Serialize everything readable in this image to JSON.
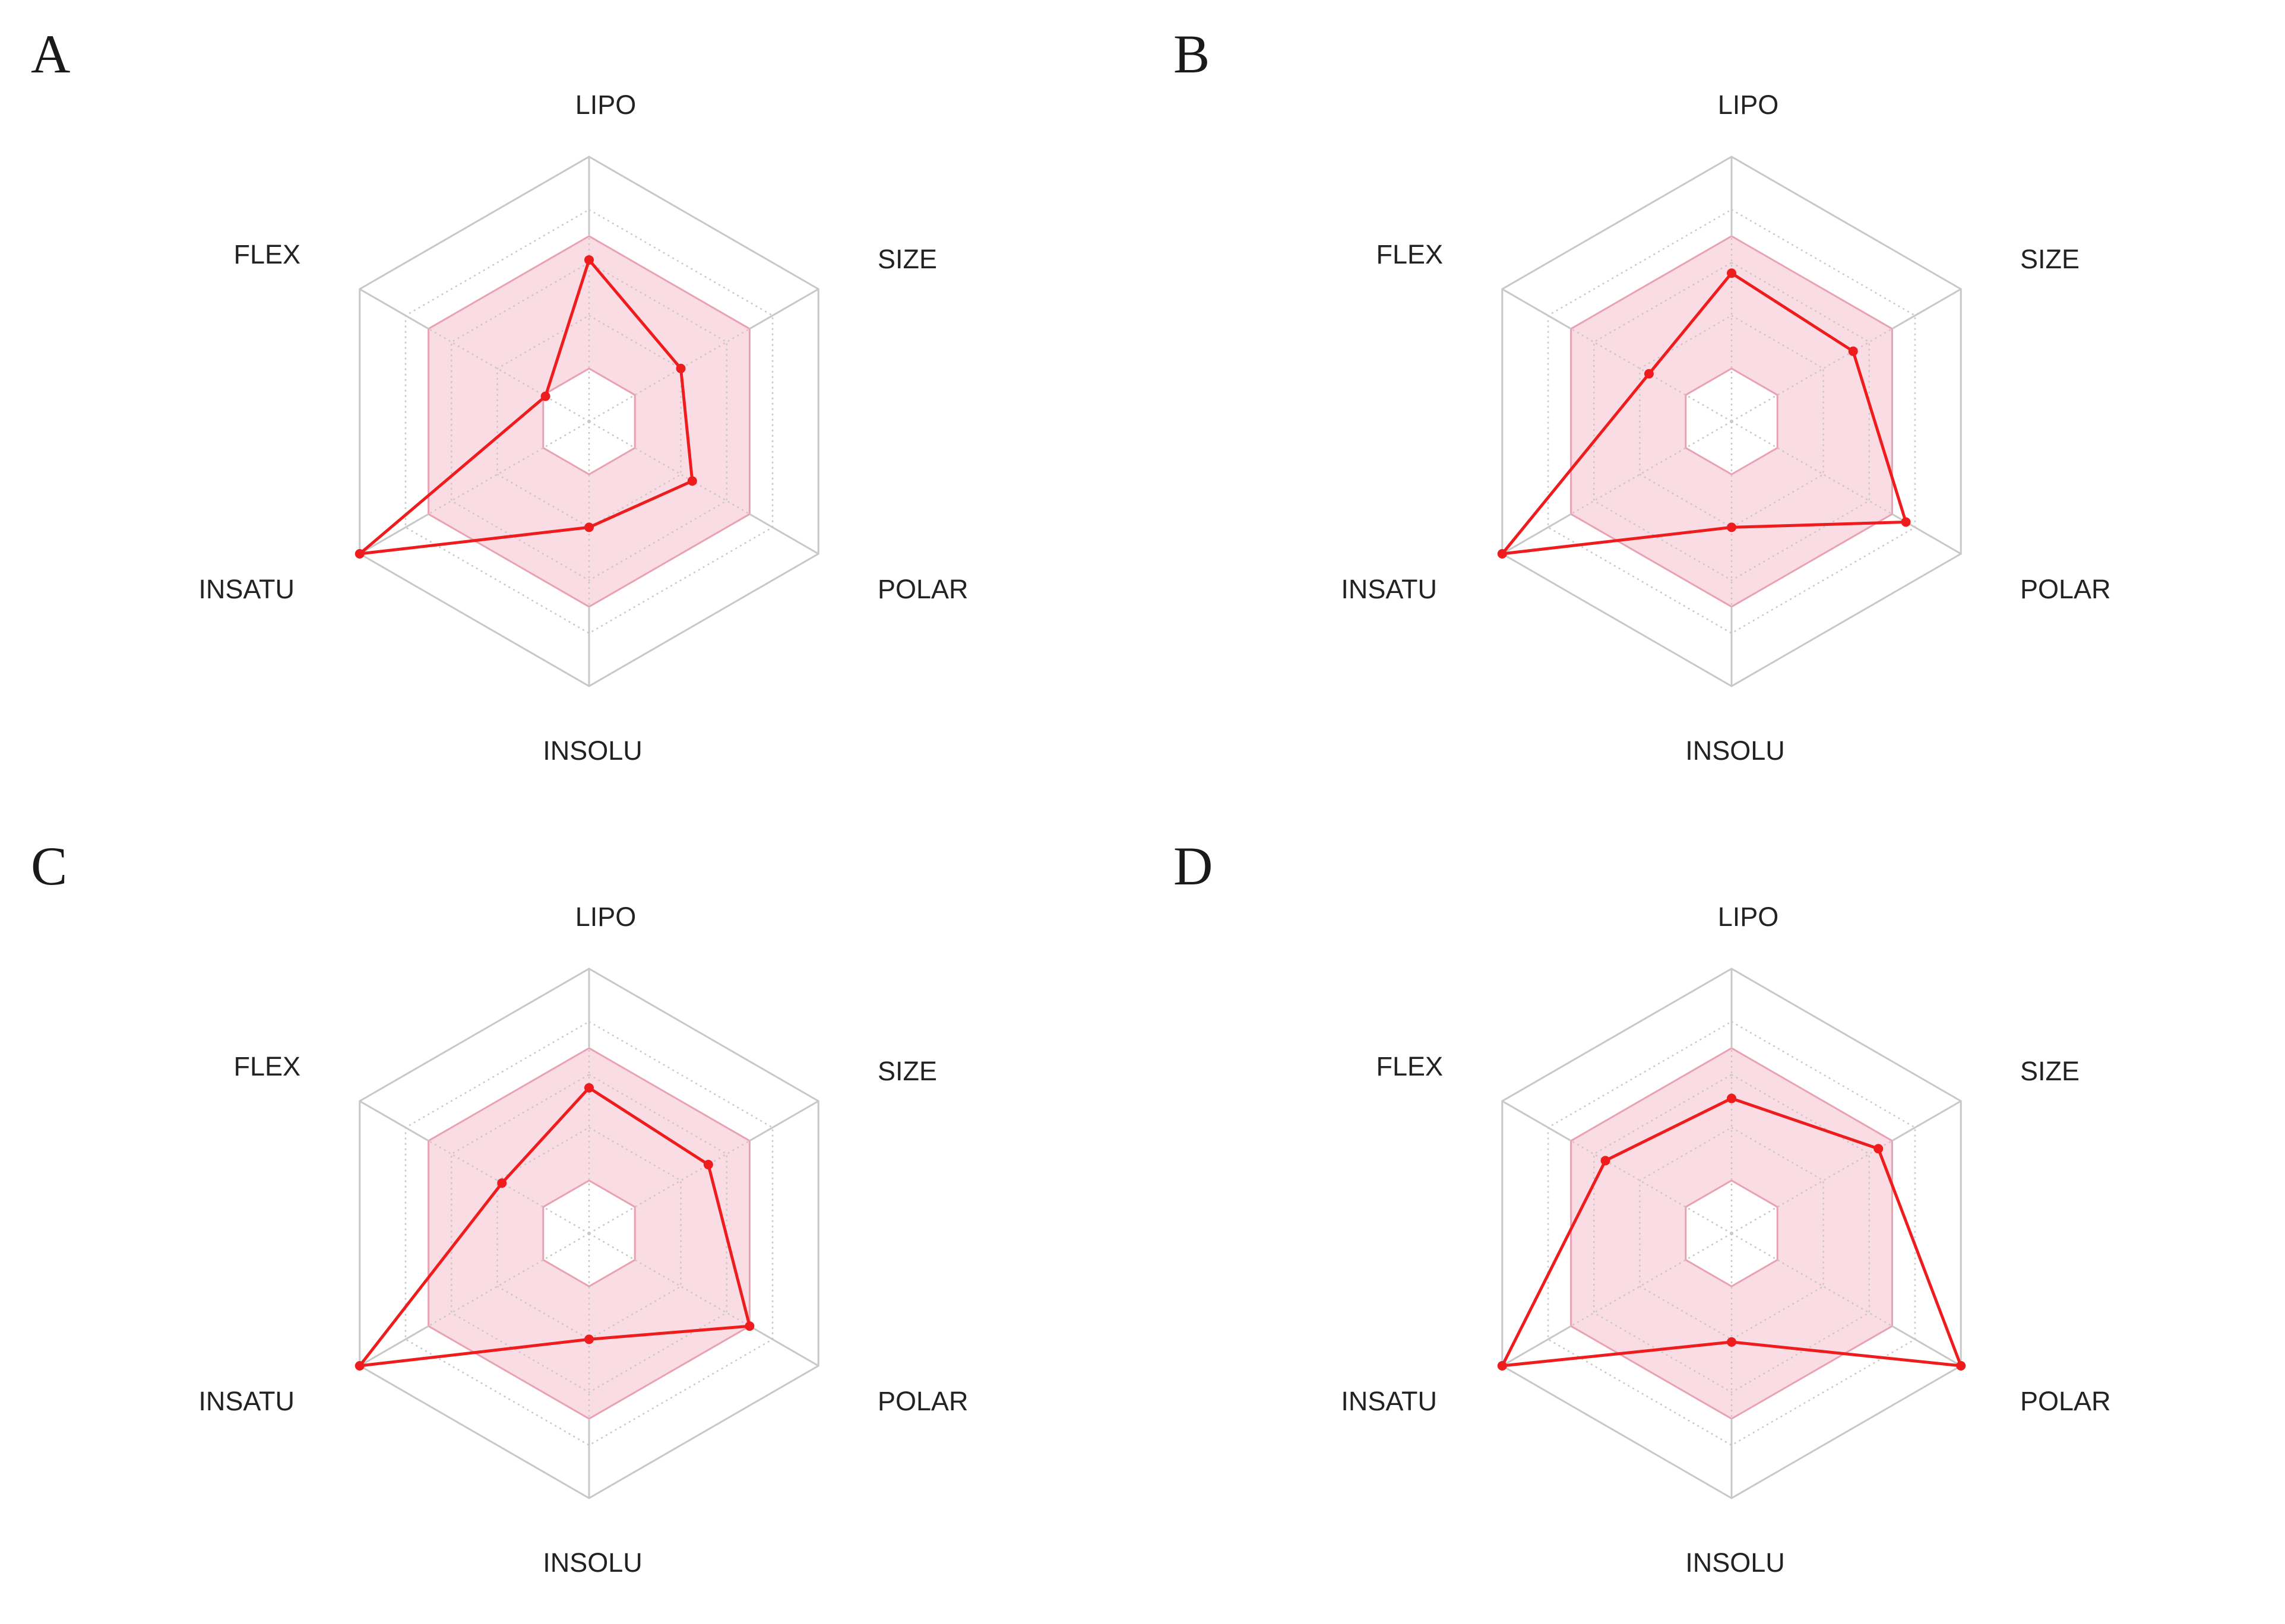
{
  "chart_data": [
    {
      "type": "radar",
      "panel": "A",
      "axes": [
        "LIPO",
        "SIZE",
        "POLAR",
        "INSOLU",
        "INSATU",
        "FLEX"
      ],
      "values": [
        0.61,
        0.4,
        0.45,
        0.4,
        1.0,
        0.19
      ],
      "optimal_range": {
        "min": 0.2,
        "max": 0.7
      },
      "range": [
        0,
        1
      ]
    },
    {
      "type": "radar",
      "panel": "B",
      "axes": [
        "LIPO",
        "SIZE",
        "POLAR",
        "INSOLU",
        "INSATU",
        "FLEX"
      ],
      "values": [
        0.56,
        0.53,
        0.76,
        0.4,
        1.0,
        0.36
      ],
      "optimal_range": {
        "min": 0.2,
        "max": 0.7
      },
      "range": [
        0,
        1
      ]
    },
    {
      "type": "radar",
      "panel": "C",
      "axes": [
        "LIPO",
        "SIZE",
        "POLAR",
        "INSOLU",
        "INSATU",
        "FLEX"
      ],
      "values": [
        0.55,
        0.52,
        0.7,
        0.4,
        1.0,
        0.38
      ],
      "optimal_range": {
        "min": 0.2,
        "max": 0.7
      },
      "range": [
        0,
        1
      ]
    },
    {
      "type": "radar",
      "panel": "D",
      "axes": [
        "LIPO",
        "SIZE",
        "POLAR",
        "INSOLU",
        "INSATU",
        "FLEX"
      ],
      "values": [
        0.51,
        0.64,
        1.0,
        0.41,
        1.0,
        0.55
      ],
      "optimal_range": {
        "min": 0.2,
        "max": 0.7
      },
      "range": [
        0,
        1
      ]
    }
  ],
  "colors": {
    "series": "#ee1c1c",
    "optimal_fill": "#f7c6d2",
    "optimal_stroke": "#e8a2b4",
    "grid_solid": "#c8c8c8",
    "grid_dotted": "#c8c8c8"
  }
}
